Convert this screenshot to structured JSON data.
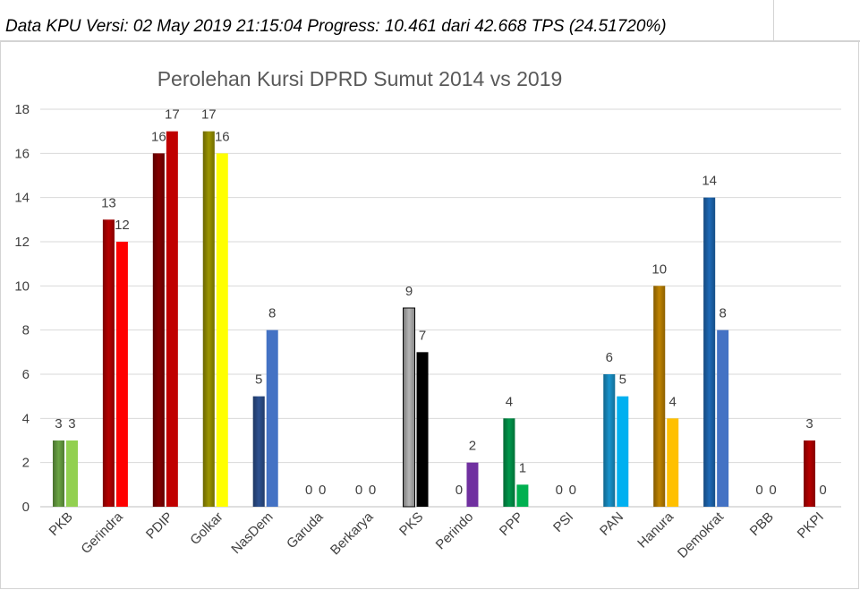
{
  "header": {
    "text": "Data KPU Versi: 02 May 2019 21:15:04 Progress: 10.461 dari 42.668 TPS (24.51720%)"
  },
  "chart_data": {
    "type": "bar",
    "title": "Perolehan Kursi DPRD Sumut 2014 vs 2019",
    "xlabel": "",
    "ylabel": "",
    "ylim": [
      0,
      18
    ],
    "yticks": [
      0,
      2,
      4,
      6,
      8,
      10,
      12,
      14,
      16,
      18
    ],
    "grid": true,
    "categories": [
      "PKB",
      "Gerindra",
      "PDIP",
      "Golkar",
      "NasDem",
      "Garuda",
      "Berkarya",
      "PKS",
      "Perindo",
      "PPP",
      "PSI",
      "PAN",
      "Hanura",
      "Demokrat",
      "PBB",
      "PKPI"
    ],
    "series": [
      {
        "values": [
          3,
          13,
          16,
          17,
          5,
          0,
          0,
          9,
          0,
          4,
          0,
          6,
          10,
          14,
          0,
          3
        ]
      },
      {
        "values": [
          3,
          12,
          17,
          16,
          8,
          0,
          0,
          7,
          2,
          1,
          0,
          5,
          4,
          8,
          0,
          0
        ]
      }
    ],
    "colors_2014": [
      "#70ad47",
      "#c00000",
      "#8b0000",
      "#a39c00",
      "#2f5597",
      "#000000",
      "#000000",
      "#bfbfbf",
      "#7030a0",
      "#00a050",
      "#000000",
      "#1a9bd7",
      "#c98a00",
      "#1f6fc0",
      "#000000",
      "#c00000"
    ],
    "colors_2019": [
      "#92d050",
      "#ff0000",
      "#c00000",
      "#ffff00",
      "#4472c4",
      "#000000",
      "#000000",
      "#000000",
      "#7030a0",
      "#00b050",
      "#000000",
      "#00b0f0",
      "#ffc000",
      "#4472c4",
      "#000000",
      "#ff0000"
    ]
  }
}
